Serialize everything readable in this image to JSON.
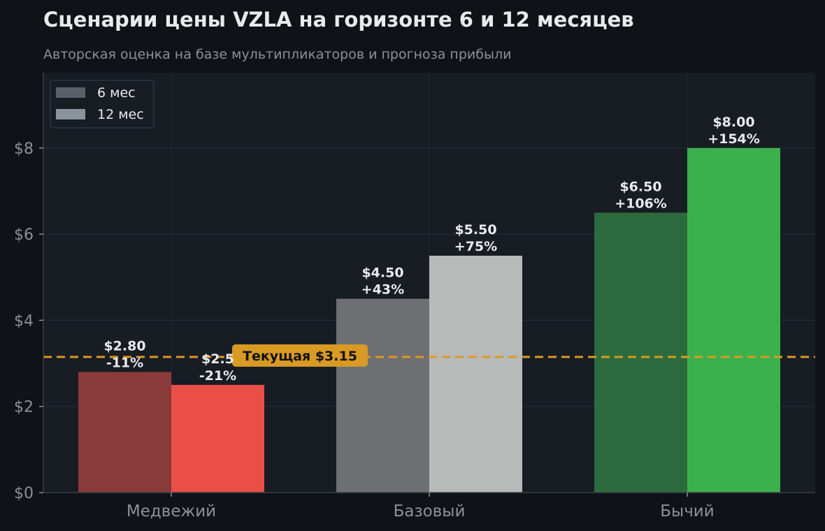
{
  "chart_data": {
    "type": "bar",
    "title": "Сценарии цены VZLA на горизонте 6 и 12 месяцев",
    "subtitle": "Авторская оценка на базе мультипликаторов и прогноза прибыли",
    "categories": [
      "Медвежий",
      "Базовый",
      "Бычий"
    ],
    "series": [
      {
        "name": "6 мес",
        "values": [
          2.8,
          4.5,
          6.5
        ],
        "value_labels": [
          "$2.80",
          "$4.50",
          "$6.50"
        ],
        "pct_labels": [
          "-11%",
          "+43%",
          "+106%"
        ],
        "colors": [
          "#8b3a3a",
          "#6e6f73",
          "#2c6b3d"
        ],
        "legend_color": "#5a5e68"
      },
      {
        "name": "12 мес",
        "values": [
          2.5,
          5.5,
          8.0
        ],
        "value_labels": [
          "$2.5",
          "$5.50",
          "$8.00"
        ],
        "pct_labels": [
          "-21%",
          "+75%",
          "+154%"
        ],
        "colors": [
          "#ea4f47",
          "#b8b9b9",
          "#3cb04d"
        ],
        "legend_color": "#8a929c"
      }
    ],
    "reference_line": {
      "value": 3.15,
      "label": "Текущая $3.15",
      "color": "#d99a24"
    },
    "yticks": [
      0,
      2,
      4,
      6,
      8
    ],
    "ytick_labels": [
      "$0",
      "$2",
      "$4",
      "$6",
      "$8"
    ],
    "ylim": [
      0,
      9.75
    ],
    "grid": true,
    "legend_position": "top-left",
    "background": "#0f1216",
    "plot_background": "#181c23"
  }
}
